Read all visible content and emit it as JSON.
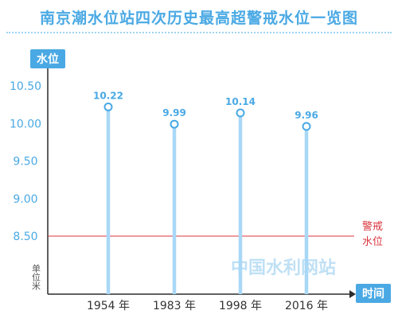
{
  "chart_data": {
    "type": "line",
    "title": "南京潮水位站四次历史最高超警戒水位一览图",
    "categories": [
      "1954 年",
      "1983 年",
      "1998 年",
      "2016 年"
    ],
    "values": [
      10.22,
      9.99,
      10.14,
      9.96
    ],
    "value_labels": [
      "10.22",
      "9.99",
      "10.14",
      "9.96"
    ],
    "ylabel": "水位",
    "xlabel": "时间",
    "unit_label": "单位米",
    "yticks": [
      "8.50",
      "9.00",
      "9.50",
      "10.00",
      "10.50"
    ],
    "ylim": [
      8.0,
      10.65
    ],
    "warning": {
      "value": 8.5,
      "label_line1": "警戒",
      "label_line2": "水位"
    },
    "watermark": "中国水利网站",
    "grid": false,
    "legend": "none"
  },
  "colors": {
    "accent": "#4aa9e4",
    "stem": "#a9d8f7",
    "axis": "#2c2c2c",
    "warning": "#d9363e",
    "title": "#4aa9e4"
  }
}
